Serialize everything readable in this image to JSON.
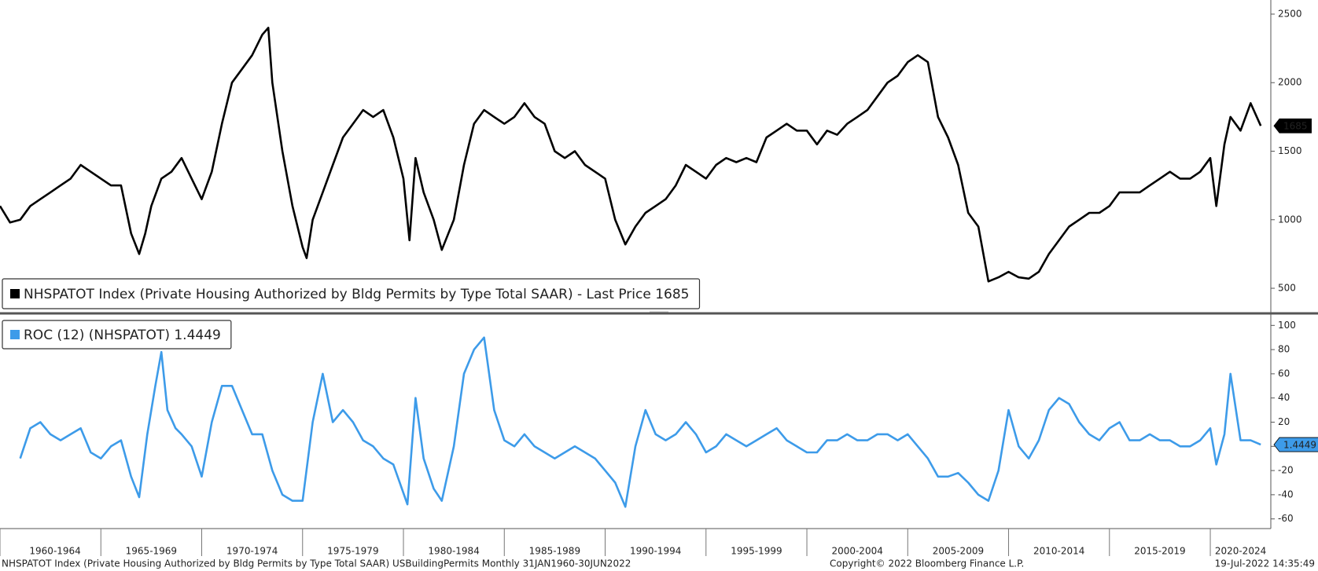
{
  "chart_data": [
    {
      "type": "line",
      "xlim": [
        1960,
        2023
      ],
      "ylim": [
        334,
        2603
      ],
      "yticks": [
        500,
        1000,
        1500,
        2000,
        2500
      ],
      "x": [
        1960,
        1960.5,
        1961,
        1961.5,
        1962,
        1962.5,
        1963,
        1963.5,
        1964,
        1964.5,
        1965,
        1965.5,
        1966,
        1966.5,
        1966.9,
        1967.2,
        1967.5,
        1968,
        1968.5,
        1969,
        1969.5,
        1970,
        1970.5,
        1971,
        1971.5,
        1972,
        1972.5,
        1973,
        1973.3,
        1973.5,
        1974,
        1974.5,
        1975,
        1975.2,
        1975.5,
        1976,
        1976.5,
        1977,
        1977.5,
        1978,
        1978.5,
        1979,
        1979.5,
        1980,
        1980.3,
        1980.6,
        1981,
        1981.5,
        1981.9,
        1982.5,
        1983,
        1983.5,
        1984,
        1984.5,
        1985,
        1985.5,
        1986,
        1986.5,
        1987,
        1987.5,
        1988,
        1988.5,
        1989,
        1989.5,
        1990,
        1990.5,
        1991,
        1991.5,
        1992,
        1992.5,
        1993,
        1993.5,
        1994,
        1994.5,
        1995,
        1995.5,
        1996,
        1996.5,
        1997,
        1997.5,
        1998,
        1998.5,
        1999,
        1999.5,
        2000,
        2000.5,
        2001,
        2001.5,
        2002,
        2002.5,
        2003,
        2003.5,
        2004,
        2004.5,
        2005,
        2005.5,
        2006,
        2006.5,
        2007,
        2007.5,
        2008,
        2008.5,
        2009,
        2009.5,
        2010,
        2010.5,
        2011,
        2011.5,
        2012,
        2012.5,
        2013,
        2013.5,
        2014,
        2014.5,
        2015,
        2015.5,
        2016,
        2016.5,
        2017,
        2017.5,
        2018,
        2018.5,
        2019,
        2019.5,
        2020,
        2020.3,
        2020.7,
        2021,
        2021.5,
        2022,
        2022.5
      ],
      "series": [
        {
          "name": "NHSPATOT Index (Private Housing Authorized by Bldg Permits by Type Total SAAR) - Last Price 1685",
          "color": "#000000",
          "values": [
            1100,
            980,
            1000,
            1100,
            1150,
            1200,
            1250,
            1300,
            1400,
            1350,
            1300,
            1250,
            1250,
            900,
            750,
            900,
            1100,
            1300,
            1350,
            1450,
            1300,
            1150,
            1350,
            1700,
            2000,
            2100,
            2200,
            2350,
            2400,
            2000,
            1500,
            1100,
            800,
            720,
            1000,
            1200,
            1400,
            1600,
            1700,
            1800,
            1750,
            1800,
            1600,
            1300,
            850,
            1450,
            1200,
            1000,
            780,
            1000,
            1400,
            1700,
            1800,
            1750,
            1700,
            1750,
            1850,
            1750,
            1700,
            1500,
            1450,
            1500,
            1400,
            1350,
            1300,
            1000,
            820,
            950,
            1050,
            1100,
            1150,
            1250,
            1400,
            1350,
            1300,
            1400,
            1450,
            1420,
            1450,
            1420,
            1600,
            1650,
            1700,
            1650,
            1650,
            1550,
            1650,
            1620,
            1700,
            1750,
            1800,
            1900,
            2000,
            2050,
            2150,
            2200,
            2150,
            1750,
            1600,
            1400,
            1050,
            950,
            550,
            580,
            620,
            580,
            570,
            620,
            750,
            850,
            950,
            1000,
            1050,
            1050,
            1100,
            1200,
            1200,
            1200,
            1250,
            1300,
            1350,
            1300,
            1300,
            1350,
            1450,
            1100,
            1550,
            1750,
            1650,
            1850,
            1685
          ]
        }
      ]
    },
    {
      "type": "line",
      "xlim": [
        1960,
        2023
      ],
      "ylim": [
        -68,
        108
      ],
      "yticks": [
        -60,
        -40,
        -20,
        0,
        20,
        40,
        60,
        80,
        100
      ],
      "x": [
        1961,
        1961.5,
        1962,
        1962.5,
        1963,
        1963.5,
        1964,
        1964.5,
        1965,
        1965.5,
        1966,
        1966.5,
        1966.9,
        1967.3,
        1967.7,
        1968,
        1968.3,
        1968.7,
        1969,
        1969.5,
        1970,
        1970.5,
        1971,
        1971.5,
        1972,
        1972.5,
        1973,
        1973.5,
        1974,
        1974.5,
        1975,
        1975.5,
        1976,
        1976.5,
        1977,
        1977.5,
        1978,
        1978.5,
        1979,
        1979.5,
        1980.2,
        1980.6,
        1981,
        1981.5,
        1981.9,
        1982.5,
        1983,
        1983.5,
        1984,
        1984.5,
        1985,
        1985.5,
        1986,
        1986.5,
        1987,
        1987.5,
        1988,
        1988.5,
        1989,
        1989.5,
        1990,
        1990.5,
        1991,
        1991.5,
        1992,
        1992.5,
        1993,
        1993.5,
        1994,
        1994.5,
        1995,
        1995.5,
        1996,
        1996.5,
        1997,
        1997.5,
        1998,
        1998.5,
        1999,
        1999.5,
        2000,
        2000.5,
        2001,
        2001.5,
        2002,
        2002.5,
        2003,
        2003.5,
        2004,
        2004.5,
        2005,
        2005.5,
        2006,
        2006.5,
        2007,
        2007.5,
        2008,
        2008.5,
        2009,
        2009.5,
        2010,
        2010.5,
        2011,
        2011.5,
        2012,
        2012.5,
        2013,
        2013.5,
        2014,
        2014.5,
        2015,
        2015.5,
        2016,
        2016.5,
        2017,
        2017.5,
        2018,
        2018.5,
        2019,
        2019.5,
        2020,
        2020.3,
        2020.7,
        2021,
        2021.5,
        2022,
        2022.5
      ],
      "series": [
        {
          "name": "ROC (12) (NHSPATOT) 1.4449",
          "color": "#3d9be9",
          "values": [
            -10,
            15,
            20,
            10,
            5,
            10,
            15,
            -5,
            -10,
            0,
            5,
            -25,
            -42,
            10,
            50,
            78,
            30,
            15,
            10,
            0,
            -25,
            20,
            50,
            50,
            30,
            10,
            10,
            -20,
            -40,
            -45,
            -45,
            20,
            60,
            20,
            30,
            20,
            5,
            0,
            -10,
            -15,
            -48,
            40,
            -10,
            -35,
            -45,
            0,
            60,
            80,
            90,
            30,
            5,
            0,
            10,
            0,
            -5,
            -10,
            -5,
            0,
            -5,
            -10,
            -20,
            -30,
            -50,
            0,
            30,
            10,
            5,
            10,
            20,
            10,
            -5,
            0,
            10,
            5,
            0,
            5,
            10,
            15,
            5,
            0,
            -5,
            -5,
            5,
            5,
            10,
            5,
            5,
            10,
            10,
            5,
            10,
            0,
            -10,
            -25,
            -25,
            -22,
            -30,
            -40,
            -45,
            -20,
            30,
            0,
            -10,
            5,
            30,
            40,
            35,
            20,
            10,
            5,
            15,
            20,
            5,
            5,
            10,
            5,
            5,
            0,
            0,
            5,
            15,
            -15,
            10,
            60,
            5,
            5,
            1.4449
          ]
        }
      ],
      "xticks": [
        {
          "value": 1960,
          "label": "1960-1964"
        },
        {
          "value": 1965,
          "label": "1965-1969"
        },
        {
          "value": 1970,
          "label": "1970-1974"
        },
        {
          "value": 1975,
          "label": "1975-1979"
        },
        {
          "value": 1980,
          "label": "1980-1984"
        },
        {
          "value": 1985,
          "label": "1985-1989"
        },
        {
          "value": 1990,
          "label": "1990-1994"
        },
        {
          "value": 1995,
          "label": "1995-1999"
        },
        {
          "value": 2000,
          "label": "2000-2004"
        },
        {
          "value": 2005,
          "label": "2005-2009"
        },
        {
          "value": 2010,
          "label": "2010-2014"
        },
        {
          "value": 2015,
          "label": "2015-2019"
        },
        {
          "value": 2020,
          "label": "2020-2024"
        }
      ]
    }
  ],
  "footer": {
    "left": "NHSPATOT Index (Private Housing Authorized by Bldg Permits by Type Total SAAR) USBuildingPermits  Monthly 31JAN1960-30JUN2022",
    "copyright": "Copyright© 2022 Bloomberg Finance L.P.",
    "timestamp": "19-Jul-2022 14:35:49"
  }
}
